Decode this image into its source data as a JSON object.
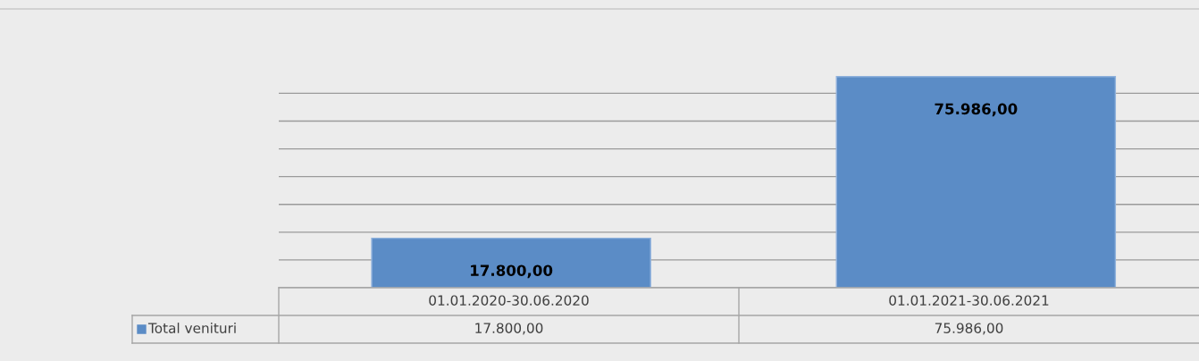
{
  "chart_data": {
    "type": "bar",
    "categories": [
      "01.01.2020-30.06.2020",
      "01.01.2021-30.06.2021"
    ],
    "series": [
      {
        "name": "Total venituri",
        "color": "#5b8cc6",
        "values": [
          17800,
          75986
        ],
        "value_labels": [
          "17.800,00",
          "75.986,00"
        ]
      }
    ],
    "yticks": [
      {
        "value": 0,
        "label": null
      },
      {
        "value": 10000,
        "label": null
      },
      {
        "value": 20000,
        "label": null
      },
      {
        "value": 30000,
        "label": null
      },
      {
        "value": 40000,
        "label": null
      },
      {
        "value": 50000,
        "label": null
      },
      {
        "value": 60000,
        "label": null
      },
      {
        "value": 70000,
        "label": null
      }
    ],
    "grid": "y",
    "legend": "bottom",
    "tick_labels": "x"
  }
}
